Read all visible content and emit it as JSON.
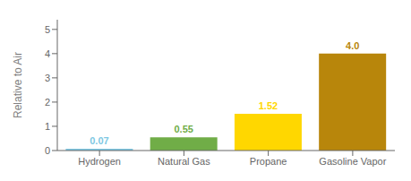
{
  "chart_data": {
    "type": "bar",
    "categories": [
      "Hydrogen",
      "Natural Gas",
      "Propane",
      "Gasoline Vapor"
    ],
    "values": [
      0.07,
      0.55,
      1.52,
      4.0
    ],
    "value_labels": [
      "0.07",
      "0.55",
      "1.52",
      "4.0"
    ],
    "data_labels": true,
    "colors": [
      "#7ec8e3",
      "#70ad47",
      "#ffd700",
      "#b8860b"
    ],
    "ylabel": "Relative to Air",
    "ylim": [
      0,
      5.4
    ],
    "yticks": [
      0,
      1,
      2,
      3,
      4,
      5
    ],
    "grid": false
  }
}
